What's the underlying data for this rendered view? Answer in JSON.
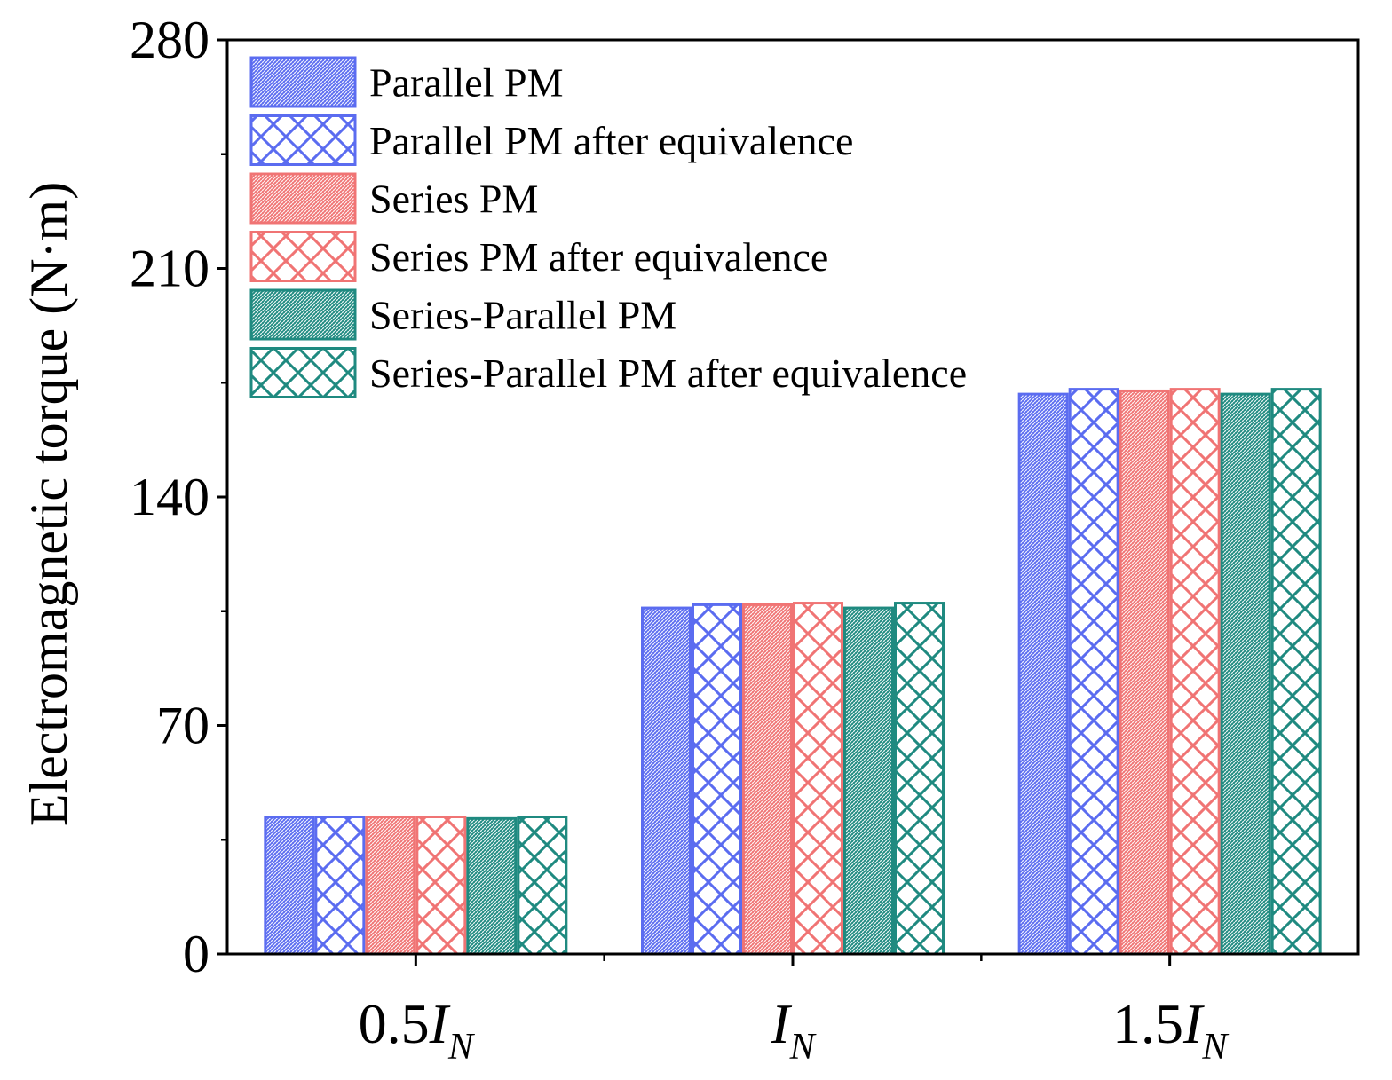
{
  "chart_data": {
    "type": "bar",
    "ylabel": "Electromagnetic torque (N·m)",
    "xlabel": "",
    "ylim": [
      0,
      280
    ],
    "yticks": [
      0,
      70,
      140,
      210,
      280
    ],
    "categories": [
      {
        "prefix": "0.5",
        "main": "I",
        "sub": "N"
      },
      {
        "prefix": "",
        "main": "I",
        "sub": "N"
      },
      {
        "prefix": "1.5",
        "main": "I",
        "sub": "N"
      }
    ],
    "series": [
      {
        "name": "Parallel PM",
        "values": [
          42.0,
          106.0,
          171.5
        ],
        "color": "#5b6cf0",
        "pattern": "dense"
      },
      {
        "name": "Parallel PM after equivalence",
        "values": [
          42.0,
          107.0,
          173.0
        ],
        "color": "#5b6cf0",
        "pattern": "cross"
      },
      {
        "name": "Series PM",
        "values": [
          42.0,
          107.0,
          172.5
        ],
        "color": "#f07474",
        "pattern": "dense"
      },
      {
        "name": "Series PM after equivalence",
        "values": [
          42.0,
          107.5,
          173.0
        ],
        "color": "#f07474",
        "pattern": "cross"
      },
      {
        "name": "Series-Parallel PM",
        "values": [
          41.5,
          106.0,
          171.5
        ],
        "color": "#1f8a80",
        "pattern": "dense"
      },
      {
        "name": "Series-Parallel PM after equivalence",
        "values": [
          42.0,
          107.5,
          173.0
        ],
        "color": "#1f8a80",
        "pattern": "cross"
      }
    ],
    "grid": false,
    "legend": "top-left"
  }
}
